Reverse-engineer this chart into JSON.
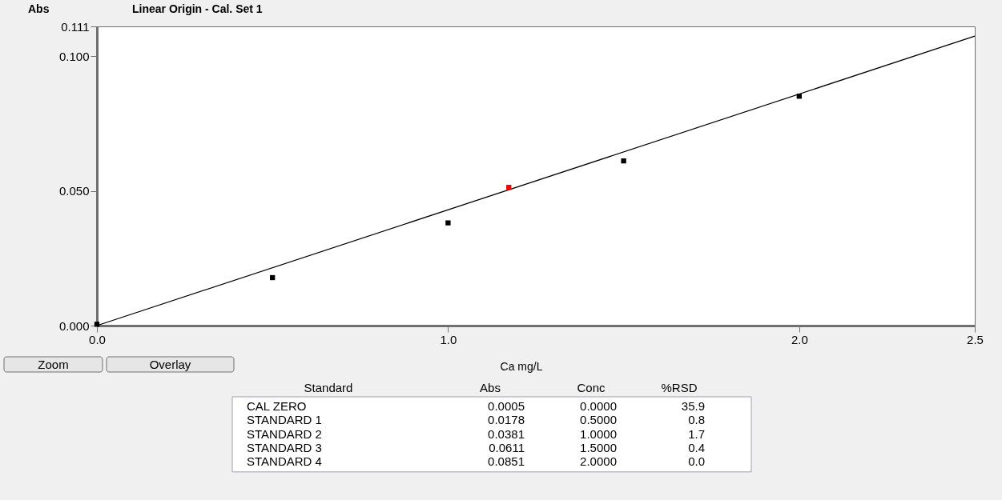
{
  "chart_data": {
    "type": "scatter",
    "title": "Linear Origin - Cal. Set 1",
    "xlabel": "Ca mg/L",
    "ylabel": "Abs",
    "xlim": [
      0,
      2.5
    ],
    "ylim": [
      0,
      0.111
    ],
    "xticks": [
      {
        "value": 0,
        "label": "0.0"
      },
      {
        "value": 1,
        "label": "1.0"
      },
      {
        "value": 2,
        "label": "2.0"
      },
      {
        "value": 2.5,
        "label": "2.5"
      }
    ],
    "yticks": [
      {
        "value": 0,
        "label": "0.000"
      },
      {
        "value": 0.05,
        "label": "0.050"
      },
      {
        "value": 0.1,
        "label": "0.100"
      },
      {
        "value": 0.111,
        "label": "0.111"
      }
    ],
    "series": [
      {
        "type": "line",
        "color": "#000000",
        "x": [
          0,
          2.5
        ],
        "values": [
          0,
          0.1074
        ]
      },
      {
        "marker": "square",
        "color": "#000000",
        "x": [
          0,
          0.5,
          1.0,
          1.5,
          2.0
        ],
        "values": [
          0.0005,
          0.0178,
          0.0381,
          0.0611,
          0.0851
        ]
      },
      {
        "marker": "square",
        "color": "#ff0000",
        "x": [
          1.173
        ],
        "values": [
          0.0513
        ]
      }
    ],
    "annotations": [
      "Zoom",
      "Overlay",
      "Standard",
      "Abs",
      "Conc",
      "%RSD",
      "CAL ZERO",
      "0.0005",
      "0.0000",
      "35.9",
      "STANDARD 1",
      "0.0178",
      "0.5000",
      "0.8",
      "STANDARD 2",
      "0.0381",
      "1.0000",
      "1.7",
      "STANDARD 3",
      "0.0611",
      "1.5000",
      "0.4",
      "STANDARD 4",
      "0.0851",
      "2.0000",
      "0.0"
    ]
  }
}
